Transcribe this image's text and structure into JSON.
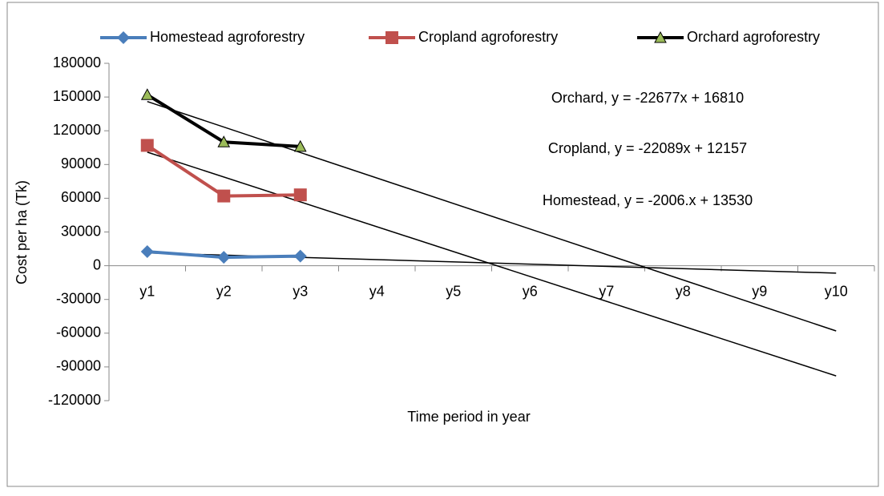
{
  "chart_data": {
    "type": "line",
    "x_label": "Time period in year",
    "y_label": "Cost per ha (Tk)",
    "categories": [
      "y1",
      "y2",
      "y3",
      "y4",
      "y5",
      "y6",
      "y7",
      "y8",
      "y9",
      "y10"
    ],
    "series": [
      {
        "name": "Homestead agroforestry",
        "color": "#4a7ebb",
        "marker": "diamond",
        "values": [
          12500,
          7500,
          8500,
          null,
          null,
          null,
          null,
          null,
          null,
          null
        ],
        "trend": [
          11400,
          -6600
        ],
        "trend_label": "Homestead, y = -2006.x + 13530"
      },
      {
        "name": "Cropland agroforestry",
        "color": "#c0504d",
        "marker": "square",
        "values": [
          107000,
          62000,
          63000,
          null,
          null,
          null,
          null,
          null,
          null,
          null
        ],
        "trend": [
          101000,
          -98000
        ],
        "trend_label": "Cropland, y = -22089x + 12157"
      },
      {
        "name": "Orchard agroforestry",
        "color": "#000000",
        "marker": "triangle",
        "marker_color": "#9bbb59",
        "values": [
          152000,
          110000,
          106000,
          null,
          null,
          null,
          null,
          null,
          null,
          null
        ],
        "trend": [
          146000,
          -58000
        ],
        "trend_label": "Orchard, y = -22677x + 16810"
      }
    ],
    "trend_color": "#000000",
    "ylim": [
      -120000,
      180000
    ],
    "yticks": [
      -120000,
      -90000,
      -60000,
      -30000,
      0,
      30000,
      60000,
      90000,
      120000,
      150000,
      180000
    ],
    "grid": false,
    "legend": "top"
  }
}
